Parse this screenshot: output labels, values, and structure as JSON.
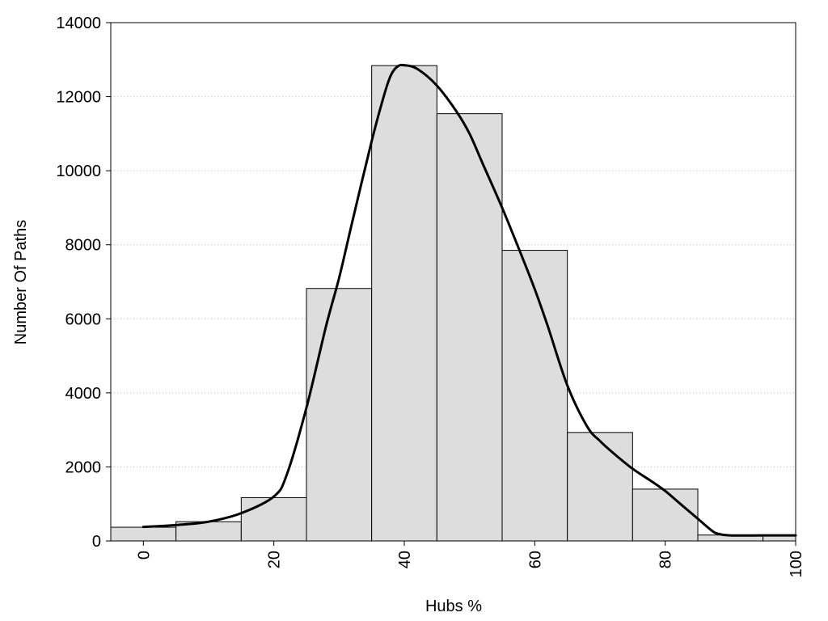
{
  "chart_data": {
    "type": "bar",
    "subtype": "histogram-with-density-curve",
    "xlabel": "Hubs %",
    "ylabel": "Number Of Paths",
    "xlim": [
      -5,
      100
    ],
    "ylim": [
      0,
      14000
    ],
    "xticks": [
      0,
      20,
      40,
      60,
      80,
      100
    ],
    "yticks": [
      0,
      2000,
      4000,
      6000,
      8000,
      10000,
      12000,
      14000
    ],
    "bin_width": 10,
    "bins": [
      {
        "center": 0,
        "value": 370
      },
      {
        "center": 10,
        "value": 520
      },
      {
        "center": 20,
        "value": 1170
      },
      {
        "center": 30,
        "value": 6820
      },
      {
        "center": 40,
        "value": 12840
      },
      {
        "center": 50,
        "value": 11540
      },
      {
        "center": 60,
        "value": 7850
      },
      {
        "center": 70,
        "value": 2930
      },
      {
        "center": 80,
        "value": 1400
      },
      {
        "center": 90,
        "value": 160
      },
      {
        "center": 100,
        "value": 150
      }
    ],
    "curve": {
      "x": [
        0,
        5,
        10,
        15,
        20,
        22,
        25,
        28,
        30,
        32,
        35,
        37,
        38,
        39,
        40,
        42,
        45,
        48,
        50,
        52,
        55,
        58,
        60,
        62,
        65,
        68,
        70,
        72,
        75,
        78,
        80,
        82,
        85,
        87,
        88,
        90,
        95,
        100
      ],
      "y": [
        380,
        430,
        520,
        750,
        1200,
        1800,
        3600,
        5800,
        7100,
        8600,
        10800,
        12100,
        12600,
        12820,
        12850,
        12750,
        12300,
        11600,
        11000,
        10200,
        9000,
        7700,
        6800,
        5800,
        4200,
        3100,
        2700,
        2380,
        1950,
        1600,
        1350,
        1050,
        600,
        300,
        200,
        150,
        150,
        150
      ],
      "color": "#000000"
    },
    "bar_fill": "#dddddd",
    "bar_edge": "#000000",
    "grid": {
      "y": true,
      "x": false,
      "style": "dotted",
      "color": "#bbbbbb"
    },
    "x_tick_rotation": "vertical"
  }
}
